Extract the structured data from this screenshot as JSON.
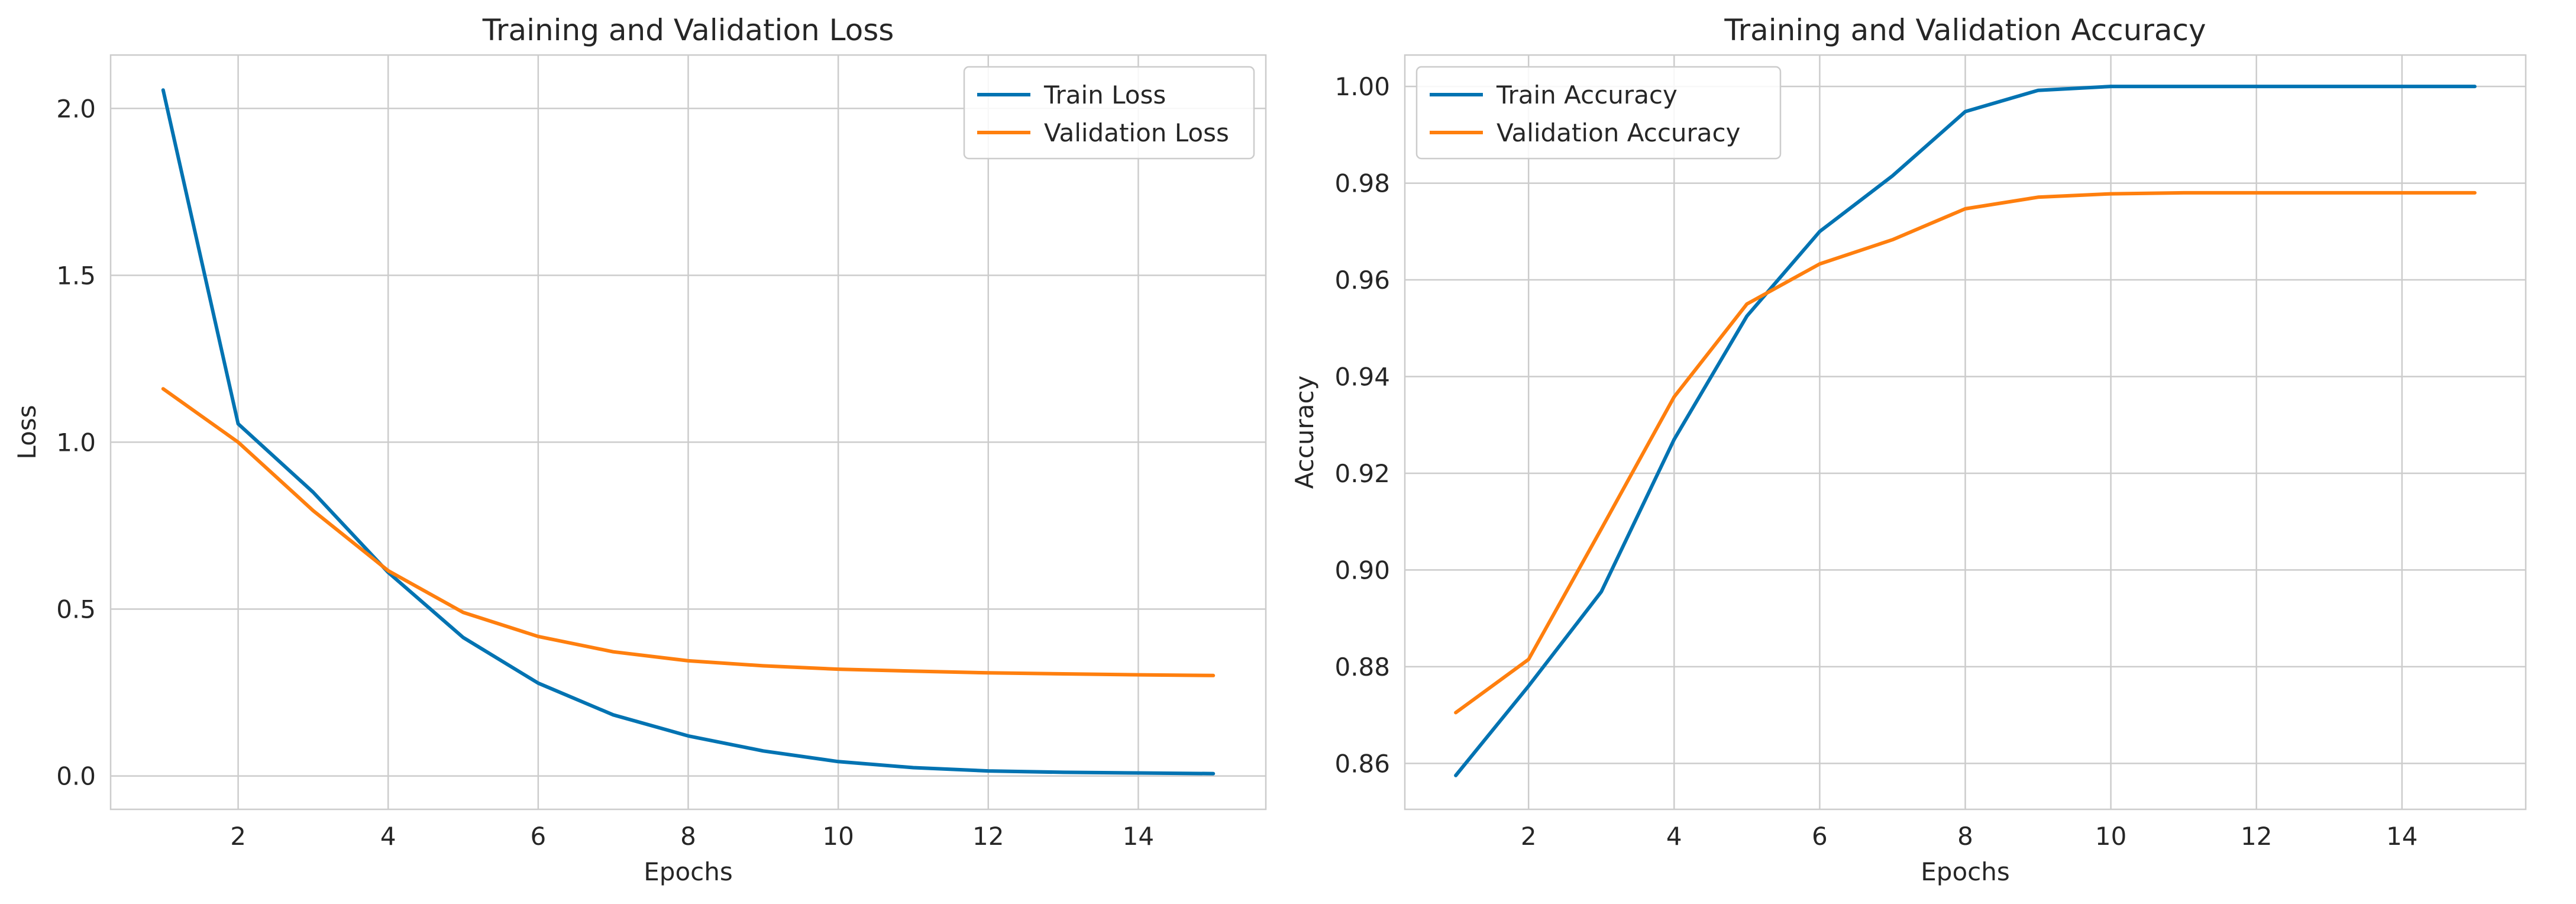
{
  "chart_data": [
    {
      "type": "line",
      "title": "Training and Validation Loss",
      "xlabel": "Epochs",
      "ylabel": "Loss",
      "x": [
        1,
        2,
        3,
        4,
        5,
        6,
        7,
        8,
        9,
        10,
        11,
        12,
        13,
        14,
        15
      ],
      "xlim": [
        0.3,
        15.7
      ],
      "ylim": [
        -0.1,
        2.16
      ],
      "xticks": [
        2,
        4,
        6,
        8,
        10,
        12,
        14
      ],
      "xtick_labels": [
        "2",
        "4",
        "6",
        "8",
        "10",
        "12",
        "14"
      ],
      "yticks": [
        0.0,
        0.5,
        1.0,
        1.5,
        2.0
      ],
      "ytick_labels": [
        "0.0",
        "0.5",
        "1.0",
        "1.5",
        "2.0"
      ],
      "grid": true,
      "legend_position": "top-right",
      "series": [
        {
          "name": "Train Loss",
          "color": "#0173b2",
          "values": [
            2.055,
            1.055,
            0.85,
            0.61,
            0.415,
            0.278,
            0.183,
            0.12,
            0.075,
            0.043,
            0.025,
            0.015,
            0.011,
            0.009,
            0.007
          ]
        },
        {
          "name": "Validation Loss",
          "color": "#ff7f0e",
          "values": [
            1.16,
            1.0,
            0.795,
            0.615,
            0.49,
            0.418,
            0.372,
            0.345,
            0.33,
            0.32,
            0.314,
            0.309,
            0.306,
            0.303,
            0.301
          ]
        }
      ]
    },
    {
      "type": "line",
      "title": "Training and Validation Accuracy",
      "xlabel": "Epochs",
      "ylabel": "Accuracy",
      "x": [
        1,
        2,
        3,
        4,
        5,
        6,
        7,
        8,
        9,
        10,
        11,
        12,
        13,
        14,
        15
      ],
      "xlim": [
        0.3,
        15.7
      ],
      "ylim": [
        0.8505,
        1.0065
      ],
      "xticks": [
        2,
        4,
        6,
        8,
        10,
        12,
        14
      ],
      "xtick_labels": [
        "2",
        "4",
        "6",
        "8",
        "10",
        "12",
        "14"
      ],
      "yticks": [
        0.86,
        0.88,
        0.9,
        0.92,
        0.94,
        0.96,
        0.98,
        1.0
      ],
      "ytick_labels": [
        "0.86",
        "0.88",
        "0.90",
        "0.92",
        "0.94",
        "0.96",
        "0.98",
        "1.00"
      ],
      "grid": true,
      "legend_position": "top-left",
      "series": [
        {
          "name": "Train Accuracy",
          "color": "#0173b2",
          "values": [
            0.8575,
            0.876,
            0.8955,
            0.927,
            0.9525,
            0.97,
            0.9815,
            0.9948,
            0.9992,
            1.0,
            1.0,
            1.0,
            1.0,
            1.0,
            1.0
          ]
        },
        {
          "name": "Validation Accuracy",
          "color": "#ff7f0e",
          "values": [
            0.8705,
            0.8815,
            0.9085,
            0.9358,
            0.955,
            0.9633,
            0.9683,
            0.9747,
            0.9771,
            0.9778,
            0.978,
            0.978,
            0.978,
            0.978,
            0.978
          ]
        }
      ]
    }
  ]
}
